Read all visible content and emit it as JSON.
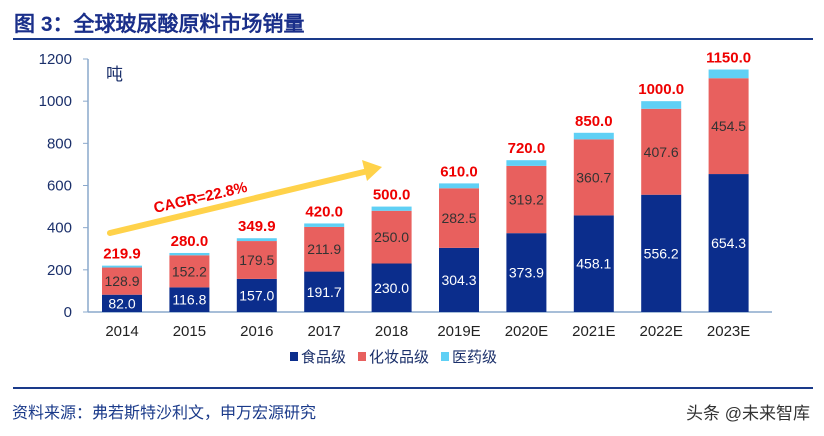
{
  "title": "图 3：全球玻尿酸原料市场销量",
  "source": "资料来源：弗若斯特沙利文，申万宏源研究",
  "watermark": "头条 @未来智库",
  "chart_data": {
    "type": "bar",
    "stacked": true,
    "ylabel": "吨",
    "ylim": [
      0,
      1200
    ],
    "yticks": [
      0,
      200,
      400,
      600,
      800,
      1000,
      1200
    ],
    "categories": [
      "2014",
      "2015",
      "2016",
      "2017",
      "2018",
      "2019E",
      "2020E",
      "2021E",
      "2022E",
      "2023E"
    ],
    "series": [
      {
        "name": "食品级",
        "color": "#0b2d8c",
        "values": [
          82.0,
          116.8,
          157.0,
          191.7,
          230.0,
          304.3,
          373.9,
          458.1,
          556.2,
          654.3
        ]
      },
      {
        "name": "化妆品级",
        "color": "#e8605e",
        "values": [
          128.9,
          152.2,
          179.5,
          211.9,
          250.0,
          282.5,
          319.2,
          360.7,
          407.6,
          454.5
        ]
      },
      {
        "name": "医药级",
        "color": "#5fd0f5",
        "values": [
          9.0,
          11.0,
          13.4,
          16.4,
          20.0,
          23.2,
          26.9,
          31.2,
          36.2,
          41.2
        ]
      }
    ],
    "totals": [
      219.9,
      280.0,
      349.9,
      420.0,
      500.0,
      610.0,
      720.0,
      850.0,
      1000.0,
      1150.0
    ],
    "total_labels": [
      "219.9",
      "280.0",
      "349.9",
      "420.0",
      "500.0",
      "610.0",
      "720.0",
      "850.0",
      "1000.0",
      "1150.0"
    ],
    "food_labels": [
      "82.0",
      "116.8",
      "157.0",
      "191.7",
      "230.0",
      "304.3",
      "373.9",
      "458.1",
      "556.2",
      "654.3"
    ],
    "cosmetic_labels": [
      "128.9",
      "152.2",
      "179.5",
      "211.9",
      "250.0",
      "282.5",
      "319.2",
      "360.7",
      "407.6",
      "454.5"
    ],
    "annotation": "CAGR=22.8%",
    "legend_position": "bottom",
    "grid": false
  }
}
